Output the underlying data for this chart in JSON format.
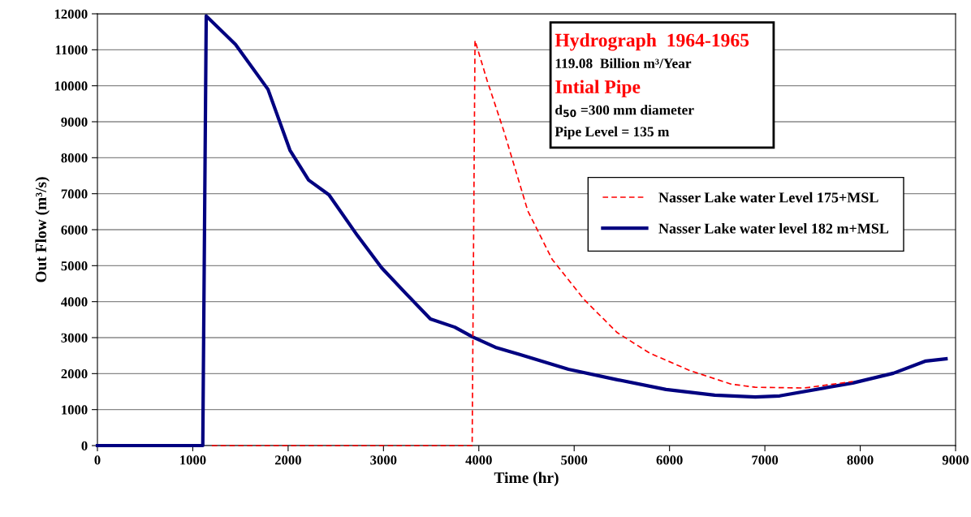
{
  "chart_data": {
    "type": "line",
    "xlabel": "Time (hr)",
    "ylabel": "Out Flow (m³/s)",
    "xlim": [
      0,
      9000
    ],
    "xticks": [
      0,
      1000,
      2000,
      3000,
      4000,
      5000,
      6000,
      7000,
      8000,
      9000
    ],
    "ylim": [
      0,
      12000
    ],
    "yticks": [
      0,
      1000,
      2000,
      3000,
      4000,
      5000,
      6000,
      7000,
      8000,
      9000,
      10000,
      11000,
      12000
    ],
    "grid": "y",
    "legend": "top right",
    "marker": "none",
    "annotations": [
      "Hydrograph  1964-1965",
      "119.08  Billion m³/Year",
      "Intial Pipe",
      "d$_{50}$ =300 mm diameter",
      "Pipe Level = 135 m"
    ],
    "series": [
      {
        "name": "Nasser Lake water Level 175+MSL",
        "color": "#ff0000",
        "line_style": "dashed",
        "x": [
          1200,
          3930,
          3960,
          4089,
          4259,
          4514,
          4770,
          5111,
          5451,
          5792,
          6218,
          6644,
          6899,
          7411,
          7922
        ],
        "values": [
          0,
          0,
          11260,
          10130,
          8770,
          6520,
          5170,
          4040,
          3140,
          2570,
          2080,
          1710,
          1620,
          1600,
          1780
        ]
      },
      {
        "name": "Nasser Lake water level 182 m+MSL",
        "color": "#000080",
        "line_style": "solid",
        "x": [
          0,
          1105,
          1141,
          1448,
          1789,
          2019,
          2215,
          2428,
          2726,
          2981,
          3237,
          3492,
          3748,
          3935,
          4174,
          4429,
          4940,
          5451,
          5963,
          6474,
          6899,
          7155,
          7922,
          8348,
          8688,
          8900
        ],
        "values": [
          0,
          0,
          11940,
          11150,
          9900,
          8210,
          7380,
          6970,
          5840,
          4940,
          4220,
          3520,
          3290,
          3020,
          2730,
          2530,
          2120,
          1830,
          1560,
          1400,
          1350,
          1380,
          1740,
          2010,
          2350,
          2410
        ]
      }
    ]
  }
}
